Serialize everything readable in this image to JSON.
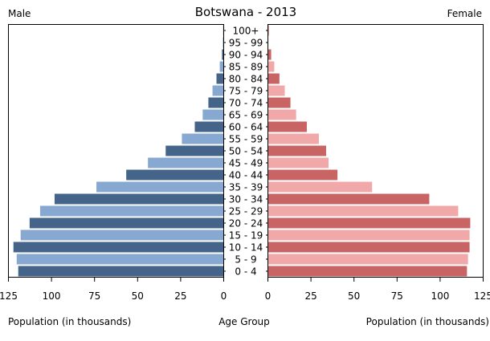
{
  "chart_data": {
    "type": "bar",
    "orientation": "horizontal-pyramid",
    "title": "Botswana - 2013",
    "left_label": "Male",
    "right_label": "Female",
    "xlabel_left": "Population (in thousands)",
    "xlabel_center": "Age Group",
    "xlabel_right": "Population (in thousands)",
    "xlim": [
      0,
      125
    ],
    "ticks": [
      0,
      25,
      50,
      75,
      100,
      125
    ],
    "grid": false,
    "categories": [
      "0 - 4",
      "5 - 9",
      "10 - 14",
      "15 - 19",
      "20 - 24",
      "25 - 29",
      "30 - 34",
      "35 - 39",
      "40 - 44",
      "45 - 49",
      "50 - 54",
      "55 - 59",
      "60 - 64",
      "65 - 69",
      "70 - 74",
      "75 - 79",
      "80 - 84",
      "85 - 89",
      "90 - 94",
      "95 - 99",
      "100+"
    ],
    "series": [
      {
        "name": "Male",
        "values": [
          119.3,
          120.2,
          122.1,
          117.9,
          112.7,
          106.6,
          98.2,
          73.9,
          56.6,
          44.0,
          33.7,
          24.3,
          16.8,
          12.2,
          8.9,
          6.5,
          4.2,
          2.3,
          1.0,
          0.5,
          0.3
        ],
        "colors": [
          "#44648a",
          "#87a8d0"
        ]
      },
      {
        "name": "Female",
        "values": [
          115.6,
          116.2,
          117.1,
          117.1,
          117.5,
          110.5,
          93.7,
          60.5,
          40.4,
          35.2,
          33.8,
          29.6,
          22.6,
          16.4,
          13.1,
          9.8,
          6.7,
          3.7,
          1.9,
          0.3,
          0.5
        ],
        "colors": [
          "#c86464",
          "#f0a8a8"
        ]
      }
    ]
  }
}
